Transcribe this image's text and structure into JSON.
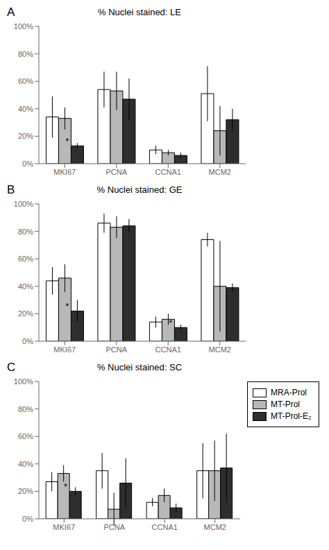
{
  "chart_data": [
    {
      "type": "bar",
      "title": "% Nuclei stained: LE",
      "categories": [
        "MKI67",
        "PCNA",
        "CCNA1",
        "MCM2"
      ],
      "series": [
        {
          "name": "MRA-Prol",
          "color": "#ffffff",
          "values": [
            34,
            54,
            10,
            51
          ],
          "errors": [
            15,
            13,
            3,
            20
          ]
        },
        {
          "name": "MT-Prol",
          "color": "#b8b8b8",
          "values": [
            33,
            53,
            8,
            24
          ],
          "errors": [
            8,
            14,
            2,
            18
          ]
        },
        {
          "name": "MT-Prol-E₂",
          "color": "#2e2e2e",
          "values": [
            13,
            47,
            6,
            32
          ],
          "errors": [
            2,
            15,
            2,
            8
          ]
        }
      ],
      "ylim": [
        0,
        100
      ],
      "yticks": [
        {
          "value": 0,
          "label": "0%"
        },
        {
          "value": 20,
          "label": "20%"
        },
        {
          "value": 40,
          "label": "40%"
        },
        {
          "value": 60,
          "label": "60%"
        },
        {
          "value": 80,
          "label": "80%"
        },
        {
          "value": 100,
          "label": "100%"
        }
      ],
      "grid": false,
      "annotations": [
        {
          "text": "A"
        },
        {
          "text": "*",
          "category": "MKI67",
          "series": "MT-Prol-E₂"
        }
      ]
    },
    {
      "type": "bar",
      "title": "% Nuclei stained: GE",
      "categories": [
        "MKI67",
        "PCNA",
        "CCNA1",
        "MCM2"
      ],
      "series": [
        {
          "name": "MRA-Prol",
          "color": "#ffffff",
          "values": [
            44,
            86,
            14,
            74
          ],
          "errors": [
            10,
            7,
            4,
            5
          ]
        },
        {
          "name": "MT-Prol",
          "color": "#b8b8b8",
          "values": [
            46,
            83,
            16,
            40
          ],
          "errors": [
            10,
            8,
            4,
            33
          ]
        },
        {
          "name": "MT-Prol-E₂",
          "color": "#2e2e2e",
          "values": [
            22,
            84,
            10,
            39
          ],
          "errors": [
            8,
            5,
            2,
            3
          ]
        }
      ],
      "ylim": [
        0,
        100
      ],
      "yticks": [
        {
          "value": 0,
          "label": "0%"
        },
        {
          "value": 20,
          "label": "20%"
        },
        {
          "value": 40,
          "label": "40%"
        },
        {
          "value": 60,
          "label": "60%"
        },
        {
          "value": 80,
          "label": "80%"
        },
        {
          "value": 100,
          "label": "100%"
        }
      ],
      "grid": false,
      "annotations": [
        {
          "text": "B"
        },
        {
          "text": "*",
          "category": "MKI67",
          "series": "MT-Prol-E₂"
        },
        {
          "text": "*",
          "category": "CCNA1",
          "series": "MT-Prol-E₂"
        }
      ]
    },
    {
      "type": "bar",
      "title": "% Nuclei stained: SC",
      "categories": [
        "MKI67",
        "PCNA",
        "CCNA1",
        "MCM2"
      ],
      "series": [
        {
          "name": "MRA-Prol",
          "color": "#ffffff",
          "values": [
            27,
            35,
            12,
            35
          ],
          "errors": [
            7,
            13,
            3,
            20
          ]
        },
        {
          "name": "MT-Prol",
          "color": "#b8b8b8",
          "values": [
            33,
            7,
            17,
            35
          ],
          "errors": [
            6,
            12,
            5,
            22
          ]
        },
        {
          "name": "MT-Prol-E₂",
          "color": "#2e2e2e",
          "values": [
            20,
            26,
            8,
            37
          ],
          "errors": [
            3,
            18,
            3,
            25
          ]
        }
      ],
      "ylim": [
        0,
        100
      ],
      "yticks": [
        {
          "value": 0,
          "label": "0%"
        },
        {
          "value": 20,
          "label": "20%"
        },
        {
          "value": 40,
          "label": "40%"
        },
        {
          "value": 60,
          "label": "60%"
        },
        {
          "value": 80,
          "label": "80%"
        },
        {
          "value": 100,
          "label": "100%"
        }
      ],
      "grid": false,
      "legend": "upper right",
      "annotations": [
        {
          "text": "C"
        },
        {
          "text": "*",
          "category": "MKI67",
          "series": "MT-Prol-E₂"
        }
      ]
    }
  ]
}
